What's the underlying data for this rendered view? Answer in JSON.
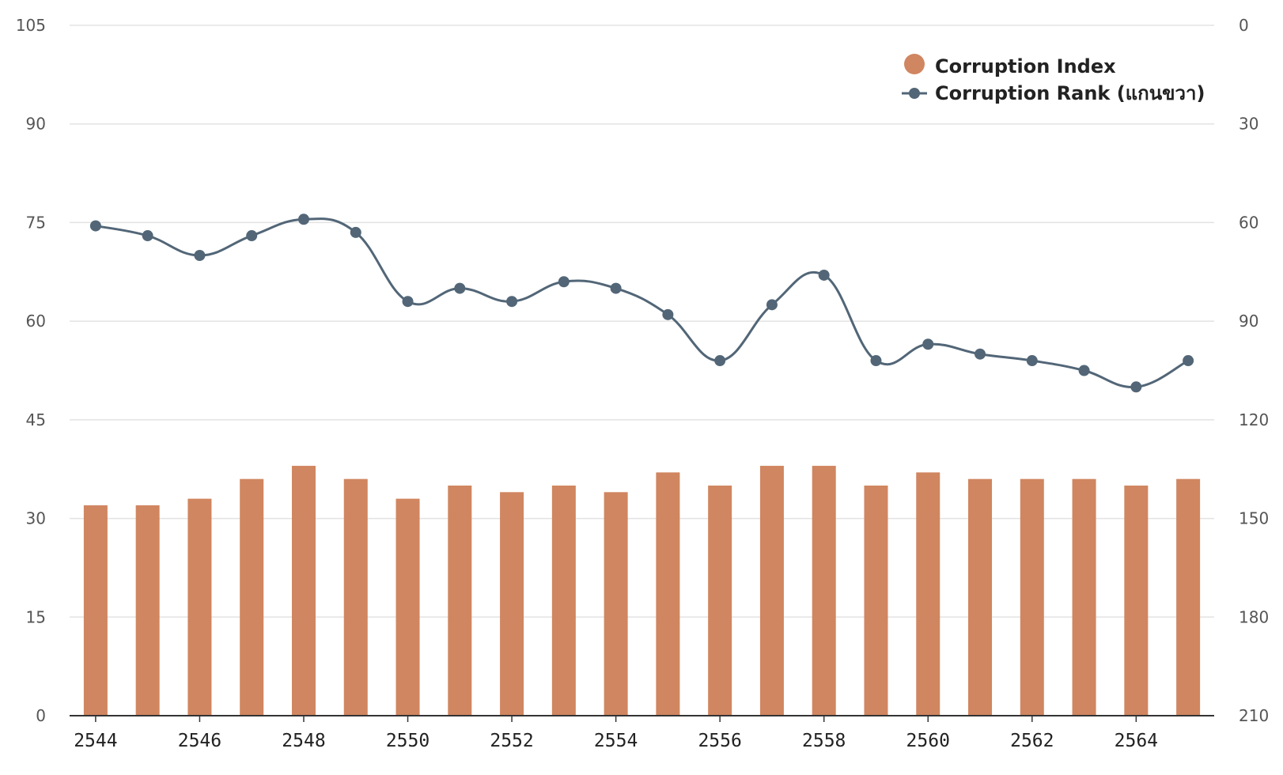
{
  "chart_data": {
    "type": "bar+line",
    "title": "",
    "xlabel": "",
    "ylabel_left": "",
    "ylabel_right": "",
    "categories": [
      "2544",
      "2545",
      "2546",
      "2547",
      "2548",
      "2549",
      "2550",
      "2551",
      "2552",
      "2553",
      "2554",
      "2555",
      "2556",
      "2557",
      "2558",
      "2559",
      "2560",
      "2561",
      "2562",
      "2563",
      "2564",
      "2565"
    ],
    "x_tick_labels": [
      "2544",
      "2546",
      "2548",
      "2550",
      "2552",
      "2554",
      "2556",
      "2558",
      "2560",
      "2562",
      "2564"
    ],
    "left_axis": {
      "min": 0,
      "max": 105,
      "ticks": [
        "0",
        "15",
        "30",
        "45",
        "60",
        "75",
        "90",
        "105"
      ]
    },
    "right_axis": {
      "min": 0,
      "max": 210,
      "inverted": true,
      "ticks": [
        "0",
        "30",
        "60",
        "90",
        "120",
        "150",
        "180",
        "210"
      ]
    },
    "series": [
      {
        "name": "Corruption Index",
        "type": "bar",
        "axis": "left",
        "color": "#d08660",
        "values": [
          32,
          32,
          33,
          36,
          38,
          36,
          33,
          35,
          34,
          35,
          34,
          37,
          35,
          38,
          38,
          35,
          37,
          36,
          36,
          36,
          35,
          36
        ]
      },
      {
        "name": "Corruption Rank (แกนขวา)",
        "type": "line",
        "axis": "right",
        "color": "#526677",
        "values": [
          61,
          64,
          70,
          64,
          59,
          63,
          84,
          80,
          84,
          78,
          80,
          88,
          102,
          85,
          76,
          102,
          97,
          100,
          102,
          105,
          110,
          102
        ]
      }
    ],
    "grid": true,
    "legend_position": "top-right"
  }
}
